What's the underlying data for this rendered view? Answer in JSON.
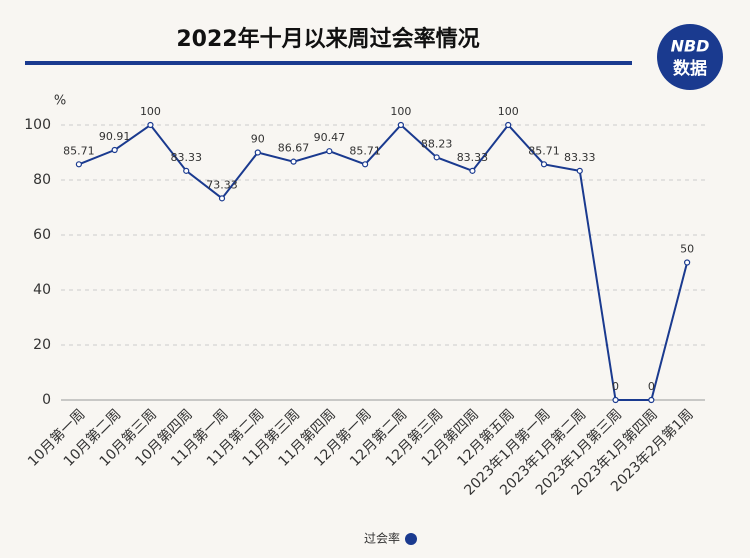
{
  "chart_data": {
    "type": "line",
    "title": "2022年十月以来周过会率情况",
    "y_unit": "%",
    "categories": [
      "10月第一周",
      "10月第二周",
      "10月第三周",
      "10月第四周",
      "11月第一周",
      "11月第二周",
      "11月第三周",
      "11月第四周",
      "12月第一周",
      "12月第二周",
      "12月第三周",
      "12月第四周",
      "12月第五周",
      "2023年1月第一周",
      "2023年1月第二周",
      "2023年1月第三周",
      "2023年1月第四周",
      "2023年2月第1周"
    ],
    "series": [
      {
        "name": "过会率",
        "color": "#1a3a8f",
        "values": [
          85.71,
          90.91,
          100,
          83.33,
          73.33,
          90,
          86.67,
          90.47,
          85.71,
          100,
          88.23,
          83.33,
          100,
          85.71,
          83.33,
          0,
          0,
          50
        ]
      }
    ],
    "ylim": [
      0,
      100
    ],
    "yticks": [
      0,
      20,
      40,
      60,
      80,
      100
    ],
    "grid": true,
    "legend": "bottom"
  },
  "logo": {
    "brand": "NBD",
    "label": "数据"
  }
}
